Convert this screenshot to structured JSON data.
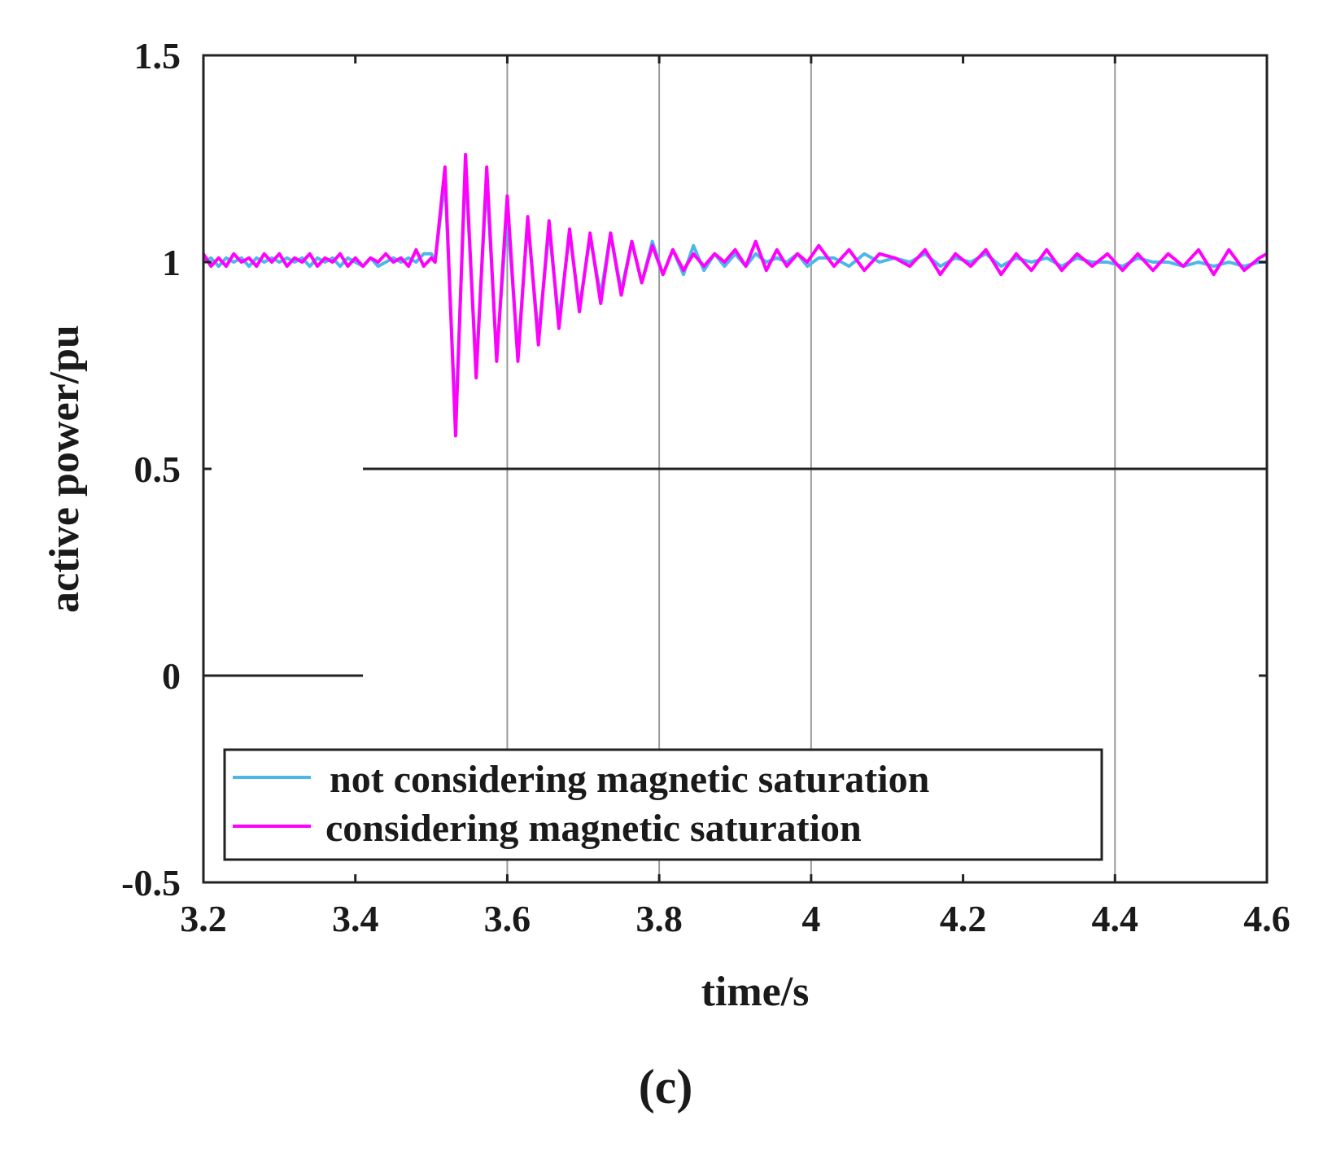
{
  "chart_data": {
    "type": "line",
    "title": "",
    "xlabel": "time/s",
    "ylabel": "active power/pu",
    "caption": "(c)",
    "xlim": [
      3.2,
      4.6
    ],
    "ylim": [
      -0.5,
      1.5
    ],
    "x_ticks": [
      3.2,
      3.4,
      3.6,
      3.8,
      4.0,
      4.2,
      4.4,
      4.6
    ],
    "x_tick_labels": [
      "3.2",
      "3.4",
      "3.6",
      "3.8",
      "4",
      "4.2",
      "4.4",
      "4.6"
    ],
    "y_ticks": [
      -0.5,
      0,
      0.5,
      1,
      1.5
    ],
    "y_tick_labels": [
      "-0.5",
      "0",
      "0.5",
      "1",
      "1.5"
    ],
    "vertical_gridlines": [
      3.6,
      3.8,
      4.0,
      4.4
    ],
    "reference_lines": [
      {
        "x0": 3.2,
        "x1": 3.41,
        "y": 0
      },
      {
        "x0": 3.41,
        "x1": 4.6,
        "y": 0.5
      }
    ],
    "legend_position": "bottom-left",
    "series": [
      {
        "name": "not considering magnetic saturation",
        "color": "#4db8e8",
        "x": [
          3.2,
          3.21,
          3.22,
          3.23,
          3.24,
          3.25,
          3.26,
          3.27,
          3.28,
          3.29,
          3.3,
          3.31,
          3.32,
          3.33,
          3.34,
          3.35,
          3.36,
          3.37,
          3.38,
          3.39,
          3.4,
          3.41,
          3.42,
          3.43,
          3.44,
          3.45,
          3.46,
          3.47,
          3.48,
          3.49,
          3.5,
          3.505,
          3.518,
          3.532,
          3.545,
          3.559,
          3.573,
          3.586,
          3.6,
          3.614,
          3.627,
          3.641,
          3.655,
          3.668,
          3.682,
          3.695,
          3.709,
          3.723,
          3.736,
          3.75,
          3.764,
          3.777,
          3.791,
          3.805,
          3.818,
          3.832,
          3.845,
          3.859,
          3.873,
          3.886,
          3.9,
          3.914,
          3.927,
          3.941,
          3.955,
          3.968,
          3.982,
          3.995,
          4.01,
          4.03,
          4.05,
          4.07,
          4.09,
          4.11,
          4.13,
          4.15,
          4.17,
          4.19,
          4.21,
          4.23,
          4.25,
          4.27,
          4.29,
          4.31,
          4.33,
          4.35,
          4.37,
          4.39,
          4.41,
          4.43,
          4.45,
          4.47,
          4.49,
          4.51,
          4.53,
          4.55,
          4.57,
          4.59,
          4.6
        ],
        "y": [
          1.0,
          1.01,
          0.99,
          1.01,
          1.0,
          1.01,
          0.99,
          1.01,
          1.0,
          1.01,
          1.0,
          1.01,
          1.0,
          1.01,
          0.99,
          1.01,
          1.0,
          1.01,
          0.99,
          1.01,
          1.0,
          0.99,
          1.01,
          0.99,
          1.0,
          1.01,
          1.0,
          1.01,
          1.0,
          1.02,
          1.02,
          1.0,
          1.2,
          0.61,
          1.23,
          0.74,
          1.2,
          0.77,
          1.12,
          0.78,
          1.1,
          0.82,
          1.08,
          0.86,
          1.07,
          0.89,
          1.06,
          0.92,
          1.07,
          0.93,
          1.05,
          0.95,
          1.05,
          0.97,
          1.03,
          0.97,
          1.04,
          0.98,
          1.02,
          0.99,
          1.02,
          0.99,
          1.02,
          1.0,
          1.01,
          1.0,
          1.02,
          0.99,
          1.01,
          1.01,
          0.99,
          1.02,
          1.0,
          1.01,
          1.0,
          1.02,
          0.99,
          1.01,
          1.0,
          1.02,
          0.99,
          1.01,
          1.0,
          1.01,
          0.99,
          1.01,
          1.0,
          1.0,
          0.99,
          1.01,
          1.0,
          1.0,
          0.99,
          1.0,
          0.99,
          1.0,
          0.99,
          1.0,
          1.0
        ]
      },
      {
        "name": "considering magnetic saturation",
        "color": "#ff00ff",
        "x": [
          3.2,
          3.21,
          3.22,
          3.23,
          3.24,
          3.25,
          3.26,
          3.27,
          3.28,
          3.29,
          3.3,
          3.31,
          3.32,
          3.33,
          3.34,
          3.35,
          3.36,
          3.37,
          3.38,
          3.39,
          3.4,
          3.41,
          3.42,
          3.43,
          3.44,
          3.45,
          3.46,
          3.47,
          3.48,
          3.49,
          3.5,
          3.505,
          3.518,
          3.532,
          3.545,
          3.559,
          3.573,
          3.586,
          3.6,
          3.614,
          3.627,
          3.641,
          3.655,
          3.668,
          3.682,
          3.695,
          3.709,
          3.723,
          3.736,
          3.75,
          3.764,
          3.777,
          3.791,
          3.805,
          3.818,
          3.832,
          3.845,
          3.859,
          3.873,
          3.886,
          3.9,
          3.914,
          3.927,
          3.941,
          3.955,
          3.968,
          3.982,
          3.995,
          4.01,
          4.03,
          4.05,
          4.07,
          4.09,
          4.11,
          4.13,
          4.15,
          4.17,
          4.19,
          4.21,
          4.23,
          4.25,
          4.27,
          4.29,
          4.31,
          4.33,
          4.35,
          4.37,
          4.39,
          4.41,
          4.43,
          4.45,
          4.47,
          4.49,
          4.51,
          4.53,
          4.55,
          4.57,
          4.59,
          4.6
        ],
        "y": [
          1.02,
          0.99,
          1.01,
          0.99,
          1.02,
          1.0,
          1.01,
          0.99,
          1.02,
          1.0,
          1.02,
          0.99,
          1.01,
          1.0,
          1.02,
          0.99,
          1.01,
          1.0,
          1.02,
          0.99,
          1.01,
          0.99,
          1.01,
          1.0,
          1.02,
          1.0,
          1.01,
          0.99,
          1.03,
          0.99,
          1.01,
          1.0,
          1.23,
          0.58,
          1.26,
          0.72,
          1.23,
          0.76,
          1.16,
          0.76,
          1.11,
          0.8,
          1.1,
          0.84,
          1.08,
          0.88,
          1.07,
          0.9,
          1.07,
          0.92,
          1.05,
          0.95,
          1.04,
          0.97,
          1.03,
          0.98,
          1.02,
          0.99,
          1.02,
          1.0,
          1.03,
          0.99,
          1.05,
          0.98,
          1.03,
          0.99,
          1.02,
          1.0,
          1.04,
          0.99,
          1.03,
          0.98,
          1.02,
          1.01,
          0.99,
          1.03,
          0.97,
          1.02,
          0.99,
          1.03,
          0.97,
          1.02,
          0.98,
          1.03,
          0.98,
          1.02,
          0.99,
          1.02,
          0.98,
          1.02,
          0.98,
          1.02,
          0.99,
          1.03,
          0.97,
          1.03,
          0.98,
          1.01,
          1.02
        ]
      }
    ]
  }
}
